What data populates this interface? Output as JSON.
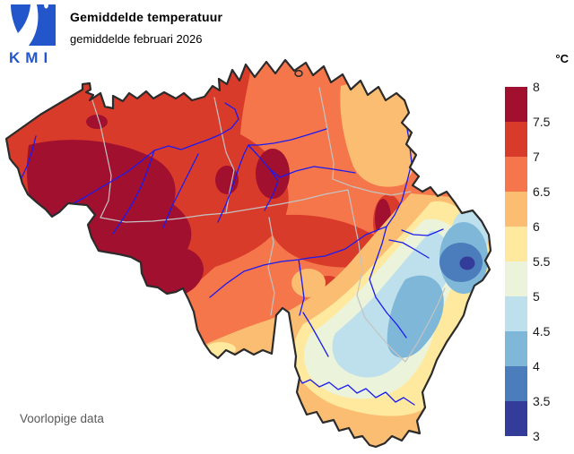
{
  "header": {
    "logo_text": "KMI",
    "title": "Gemiddelde temperatuur",
    "subtitle": "gemiddelde februari 2026"
  },
  "legend": {
    "unit": "°C",
    "ticks": [
      "8",
      "7.5",
      "7",
      "6.5",
      "6",
      "5.5",
      "5",
      "4.5",
      "4",
      "3.5",
      "3"
    ],
    "band_colors": [
      "#a2102f",
      "#d93b2b",
      "#f5764a",
      "#fabd72",
      "#fee99e",
      "#ebf4da",
      "#bedfec",
      "#7fb7d9",
      "#4b7dbd",
      "#333d99"
    ],
    "scale_min": 3,
    "scale_max": 8,
    "scale_step": 0.5
  },
  "map": {
    "colors": {
      "outline": "#2b2b2b",
      "province": "#c3c3c3",
      "river": "#1b1bf0",
      "logo_blue": "#2355cb",
      "background": "#ffffff"
    }
  },
  "footer": {
    "note": "Voorlopige data"
  }
}
